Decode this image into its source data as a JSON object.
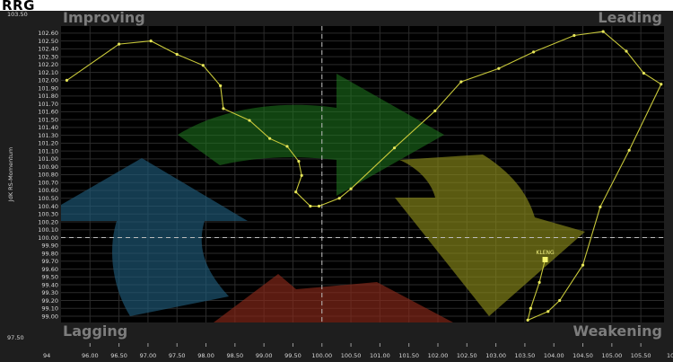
{
  "header": {
    "title": "RRG"
  },
  "quadrants": {
    "top_left": "Improving",
    "top_right": "Leading",
    "bottom_left": "Lagging",
    "bottom_right": "Weakening"
  },
  "axis": {
    "ylabel": "JdK RS-Momentum",
    "y_top_edge": "103.50",
    "y_bottom_edge": "97.50",
    "x_left_edge": "94",
    "x_right_edge": "10"
  },
  "colors": {
    "background": "#000000",
    "frame": "#1e1e1e",
    "tail": "#c8c83a",
    "improving": "#1f7a1f",
    "leading": "#8a8a1a",
    "lagging": "#1e5a7a",
    "weakening": "#8a2a1a"
  },
  "chart_data": {
    "type": "scatter",
    "xlim": [
      95.5,
      105.9
    ],
    "ylim": [
      98.92,
      102.69
    ],
    "x_ticks": [
      96.0,
      96.5,
      97.0,
      97.5,
      98.0,
      98.5,
      99.0,
      99.5,
      100.0,
      100.5,
      101.0,
      101.5,
      102.0,
      102.5,
      103.0,
      103.5,
      104.0,
      104.5,
      105.0,
      105.5
    ],
    "x_tick_labels": [
      "96.00",
      "96.50",
      "97.00",
      "97.50",
      "98.00",
      "98.50",
      "99.00",
      "99.50",
      "100.00",
      "100.50",
      "101.00",
      "101.50",
      "102.00",
      "102.50",
      "103.00",
      "103.50",
      "104.00",
      "104.50",
      "105.00",
      "105.50"
    ],
    "y_ticks": [
      102.6,
      102.5,
      102.4,
      102.3,
      102.2,
      102.1,
      102.0,
      101.9,
      101.8,
      101.7,
      101.6,
      101.5,
      101.4,
      101.3,
      101.2,
      101.1,
      101.0,
      100.9,
      100.8,
      100.7,
      100.6,
      100.5,
      100.4,
      100.3,
      100.2,
      100.1,
      100.0,
      99.9,
      99.8,
      99.7,
      99.6,
      99.5,
      99.4,
      99.3,
      99.2,
      99.1,
      99.0
    ],
    "y_tick_labels": [
      "102.60",
      "102.50",
      "102.40",
      "102.30",
      "102.20",
      "102.10",
      "102.00",
      "101.90",
      "101.80",
      "101.70",
      "101.60",
      "101.50",
      "101.40",
      "101.30",
      "101.20",
      "101.10",
      "101.00",
      "100.90",
      "100.80",
      "100.70",
      "100.60",
      "100.50",
      "100.40",
      "100.30",
      "100.20",
      "100.10",
      "100.00",
      "99.90",
      "99.80",
      "99.70",
      "99.60",
      "99.50",
      "99.40",
      "99.30",
      "99.20",
      "99.10",
      "99.00"
    ],
    "center": {
      "x": 100.0,
      "y": 100.0
    },
    "grid": true,
    "series": [
      {
        "name": "KLENG",
        "points": [
          [
            95.6,
            102.0
          ],
          [
            96.5,
            102.46
          ],
          [
            97.05,
            102.5
          ],
          [
            97.5,
            102.33
          ],
          [
            97.95,
            102.19
          ],
          [
            98.25,
            101.93
          ],
          [
            98.3,
            101.64
          ],
          [
            98.75,
            101.49
          ],
          [
            99.1,
            101.26
          ],
          [
            99.4,
            101.16
          ],
          [
            99.6,
            100.97
          ],
          [
            99.65,
            100.79
          ],
          [
            99.55,
            100.58
          ],
          [
            99.8,
            100.4
          ],
          [
            99.95,
            100.4
          ],
          [
            100.3,
            100.5
          ],
          [
            100.5,
            100.62
          ],
          [
            101.25,
            101.14
          ],
          [
            101.95,
            101.61
          ],
          [
            102.4,
            101.98
          ],
          [
            103.05,
            102.15
          ],
          [
            103.65,
            102.36
          ],
          [
            104.35,
            102.57
          ],
          [
            104.85,
            102.62
          ],
          [
            105.25,
            102.37
          ],
          [
            105.55,
            102.09
          ],
          [
            105.85,
            101.95
          ],
          [
            105.3,
            101.11
          ],
          [
            104.8,
            100.39
          ],
          [
            104.5,
            99.65
          ],
          [
            104.1,
            99.2
          ],
          [
            103.9,
            99.06
          ],
          [
            103.55,
            98.95
          ],
          [
            103.6,
            99.1
          ],
          [
            103.75,
            99.43
          ],
          [
            103.85,
            99.72
          ]
        ],
        "label_point": "last"
      }
    ]
  }
}
